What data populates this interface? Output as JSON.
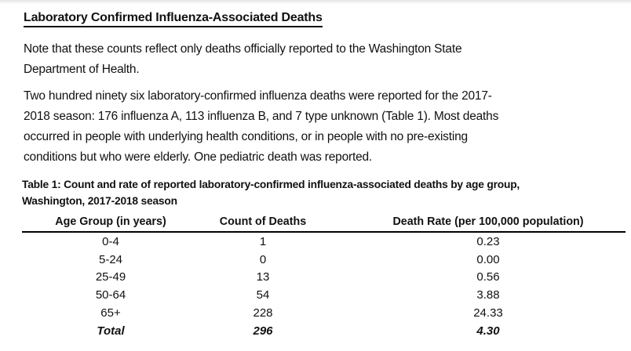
{
  "document": {
    "title": "Laboratory Confirmed Influenza-Associated Deaths",
    "paragraphs": {
      "note": [
        "Note that these counts reflect only deaths officially reported to the Washington State",
        "Department of Health."
      ],
      "summary": [
        "Two hundred ninety six laboratory-confirmed influenza deaths were reported for the 2017-",
        "2018 season: 176 influenza A, 113 influenza B, and 7 type unknown (Table 1). Most deaths",
        "occurred in people with underlying health conditions, or in people with no pre-existing",
        "conditions but who were elderly. One pediatric death was reported."
      ]
    }
  },
  "table": {
    "caption": [
      "Table 1: Count and rate of reported laboratory-confirmed influenza-associated deaths by age group,",
      "Washington, 2017-2018 season"
    ],
    "columns": [
      "Age Group (in years)",
      "Count of Deaths",
      "Death Rate (per 100,000 population)"
    ],
    "rows": [
      {
        "age_group": "0-4",
        "count": "1",
        "rate": "0.23"
      },
      {
        "age_group": "5-24",
        "count": "0",
        "rate": "0.00"
      },
      {
        "age_group": "25-49",
        "count": "13",
        "rate": "0.56"
      },
      {
        "age_group": "50-64",
        "count": "54",
        "rate": "3.88"
      },
      {
        "age_group": "65+",
        "count": "228",
        "rate": "24.33"
      }
    ],
    "total_row": {
      "age_group": "Total",
      "count": "296",
      "rate": "4.30"
    }
  },
  "colors": {
    "text": "#111111",
    "rule": "#000000",
    "background": "#ffffff"
  }
}
